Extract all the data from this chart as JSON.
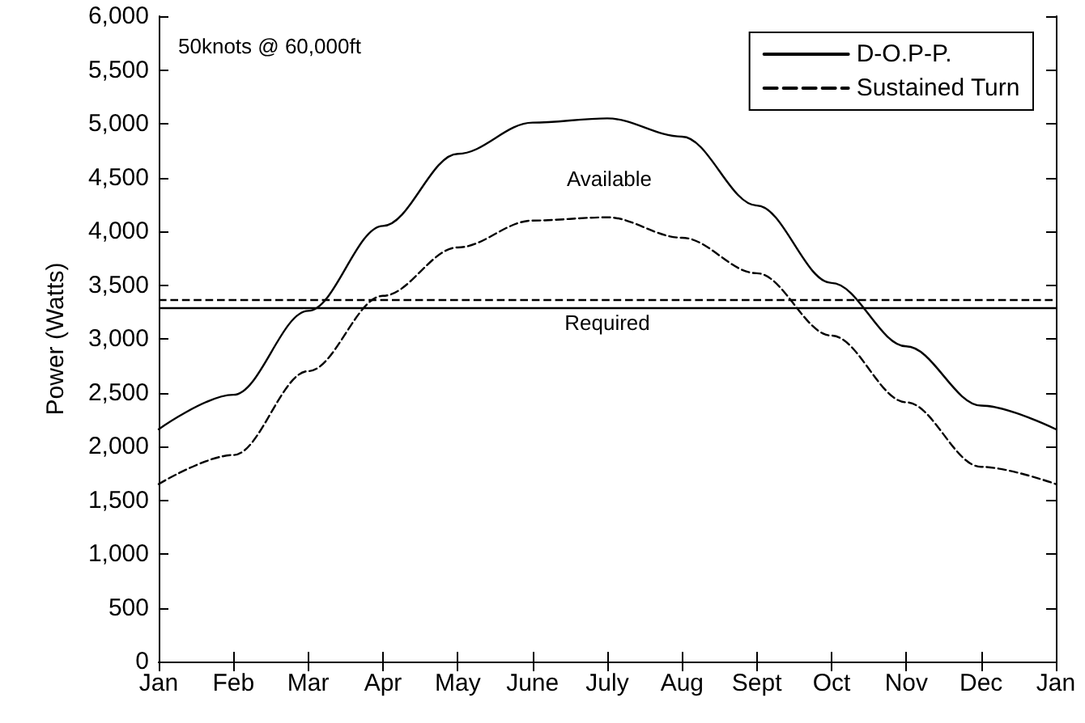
{
  "chart_data": {
    "type": "line",
    "ylabel": "Power (Watts)",
    "categories": [
      "Jan",
      "Feb",
      "Mar",
      "Apr",
      "May",
      "June",
      "July",
      "Aug",
      "Sept",
      "Oct",
      "Nov",
      "Dec",
      "Jan"
    ],
    "ylim": [
      0,
      6000
    ],
    "yticks": [
      0,
      500,
      {
        "value": 1000,
        "label": "1,000"
      },
      {
        "value": 1500,
        "label": "1,500"
      },
      {
        "value": 2000,
        "label": "2,000"
      },
      {
        "value": 2500,
        "label": "2,500"
      },
      {
        "value": 3000,
        "label": "3,000"
      },
      {
        "value": 3500,
        "label": "3,500"
      },
      {
        "value": 4000,
        "label": "4,000"
      },
      {
        "value": 4500,
        "label": "4,500"
      },
      {
        "value": 5000,
        "label": "5,000"
      },
      {
        "value": 5500,
        "label": "5,500"
      },
      {
        "value": 6000,
        "label": "6,000"
      }
    ],
    "series": [
      {
        "name": "D-O.P-P.",
        "color": "#000000",
        "line_style": "solid",
        "values": [
          2160,
          2480,
          3260,
          4050,
          4720,
          5010,
          5050,
          4880,
          4240,
          3520,
          2930,
          2380,
          2160
        ]
      },
      {
        "name": "Sustained Turn",
        "color": "#000000",
        "line_style": "dashed",
        "values": [
          1650,
          1920,
          2700,
          3400,
          3850,
          4100,
          4130,
          3940,
          3610,
          3030,
          2410,
          1810,
          1650
        ]
      }
    ],
    "ref_lines": [
      {
        "axis": "y",
        "value": 3290,
        "label": "Required",
        "color": "#000000",
        "line_style": "solid"
      },
      {
        "axis": "y",
        "value": 3360,
        "color": "#000000",
        "line_style": "dashed"
      }
    ],
    "annotations": [
      "50knots @ 60,000ft",
      "Available"
    ],
    "legend": "top right",
    "grid": false,
    "marker": "none"
  }
}
